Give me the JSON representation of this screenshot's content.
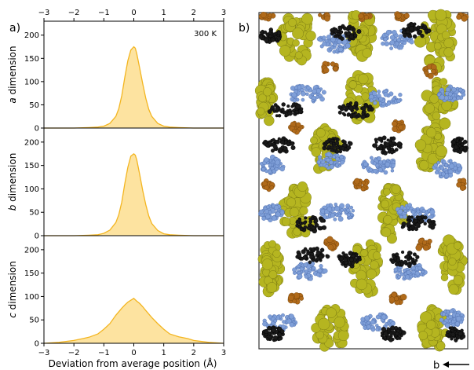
{
  "panel_a": {
    "label": "a)",
    "temperature": "300 K",
    "xlabel": "Deviation from average position (Å)",
    "x_ticks": [
      "−3",
      "−2",
      "−1",
      "0",
      "1",
      "2",
      "3"
    ],
    "y_ticks": [
      "0",
      "50",
      "100",
      "150",
      "200"
    ]
  },
  "panel_b": {
    "label": "b)",
    "axis_label": "b",
    "colors": {
      "yellow_green": "#b5b520",
      "blue": "#7f9fd8",
      "black": "#1a1a1a",
      "brown": "#b06a1a"
    }
  },
  "chart_data": [
    {
      "type": "area",
      "ylabel": "a dimension",
      "xlim": [
        -3,
        3
      ],
      "ylim": [
        0,
        230
      ],
      "color": "#f3b520",
      "fill": "#fde3a0",
      "x": [
        -3.0,
        -2.0,
        -1.5,
        -1.2,
        -1.0,
        -0.8,
        -0.6,
        -0.5,
        -0.4,
        -0.3,
        -0.2,
        -0.1,
        0.0,
        0.05,
        0.1,
        0.2,
        0.3,
        0.4,
        0.5,
        0.6,
        0.8,
        1.0,
        1.2,
        1.5,
        2.0,
        3.0
      ],
      "y": [
        0,
        0,
        1,
        2,
        4,
        10,
        25,
        42,
        70,
        110,
        145,
        168,
        175,
        172,
        160,
        128,
        95,
        64,
        40,
        25,
        10,
        4,
        2,
        1,
        0,
        0
      ]
    },
    {
      "type": "area",
      "ylabel": "b dimension",
      "xlim": [
        -3,
        3
      ],
      "ylim": [
        0,
        230
      ],
      "color": "#f3b520",
      "fill": "#fde3a0",
      "x": [
        -3.0,
        -2.0,
        -1.5,
        -1.2,
        -1.0,
        -0.8,
        -0.6,
        -0.5,
        -0.4,
        -0.3,
        -0.2,
        -0.1,
        0.0,
        0.05,
        0.1,
        0.2,
        0.3,
        0.4,
        0.5,
        0.6,
        0.8,
        1.0,
        1.2,
        1.5,
        2.0,
        3.0
      ],
      "y": [
        0,
        0,
        1,
        2,
        5,
        12,
        28,
        45,
        72,
        112,
        146,
        170,
        175,
        172,
        162,
        130,
        96,
        66,
        42,
        26,
        11,
        4,
        2,
        1,
        0,
        0
      ]
    },
    {
      "type": "area",
      "ylabel": "c dimension",
      "xlim": [
        -3,
        3
      ],
      "ylim": [
        0,
        230
      ],
      "color": "#f3b520",
      "fill": "#fde3a0",
      "x": [
        -3.0,
        -2.5,
        -2.0,
        -1.7,
        -1.5,
        -1.2,
        -1.0,
        -0.8,
        -0.6,
        -0.4,
        -0.3,
        -0.2,
        -0.1,
        0.0,
        0.1,
        0.2,
        0.3,
        0.4,
        0.6,
        0.8,
        1.0,
        1.2,
        1.5,
        1.8,
        2.0,
        2.5,
        3.0
      ],
      "y": [
        0,
        2,
        6,
        10,
        13,
        20,
        30,
        42,
        60,
        75,
        82,
        88,
        92,
        96,
        90,
        85,
        78,
        70,
        55,
        42,
        30,
        20,
        14,
        10,
        6,
        2,
        0
      ]
    }
  ]
}
